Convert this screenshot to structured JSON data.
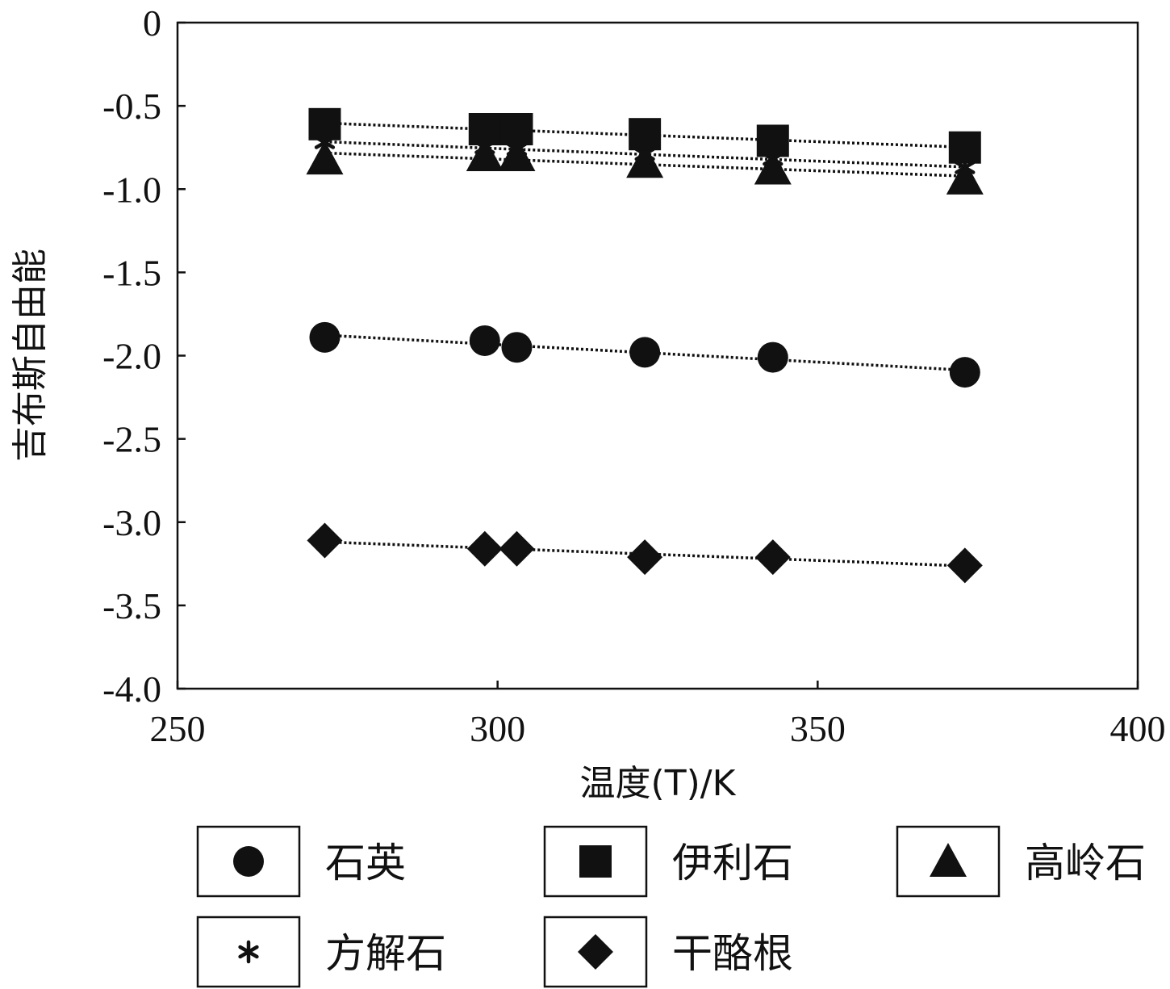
{
  "chart_data": {
    "type": "scatter",
    "title": "",
    "xlabel": "温度(T)/K",
    "ylabel": "吉布斯自由能",
    "xlim": [
      250,
      400
    ],
    "ylim": [
      -4.0,
      0
    ],
    "xticks": [
      250,
      300,
      350,
      400
    ],
    "xtick_labels": [
      "250",
      "300",
      "350",
      "400"
    ],
    "yticks": [
      0,
      -0.5,
      -1.0,
      -1.5,
      -2.0,
      -2.5,
      -3.0,
      -3.5,
      -4.0
    ],
    "ytick_labels": [
      "0",
      "-0.5",
      "-1.0",
      "-1.5",
      "-2.0",
      "-2.5",
      "-3.0",
      "-3.5",
      "-4.0"
    ],
    "grid": false,
    "legend_position": "bottom",
    "trendlines": "dotted linear fit per series",
    "x": [
      273,
      298,
      303,
      323,
      343,
      373
    ],
    "series": [
      {
        "name": "石英",
        "marker": "circle",
        "values": [
          -1.89,
          -1.91,
          -1.95,
          -1.98,
          -2.01,
          -2.1
        ]
      },
      {
        "name": "伊利石",
        "marker": "square",
        "values": [
          -0.61,
          -0.64,
          -0.64,
          -0.67,
          -0.71,
          -0.75
        ]
      },
      {
        "name": "高岭石",
        "marker": "triangle",
        "values": [
          -0.82,
          -0.8,
          -0.8,
          -0.84,
          -0.88,
          -0.94
        ]
      },
      {
        "name": "方解石",
        "marker": "asterisk",
        "values": [
          -0.72,
          -0.75,
          -0.76,
          -0.79,
          -0.82,
          -0.87
        ]
      },
      {
        "name": "干酪根",
        "marker": "diamond",
        "values": [
          -3.11,
          -3.16,
          -3.16,
          -3.21,
          -3.21,
          -3.26
        ]
      }
    ]
  }
}
